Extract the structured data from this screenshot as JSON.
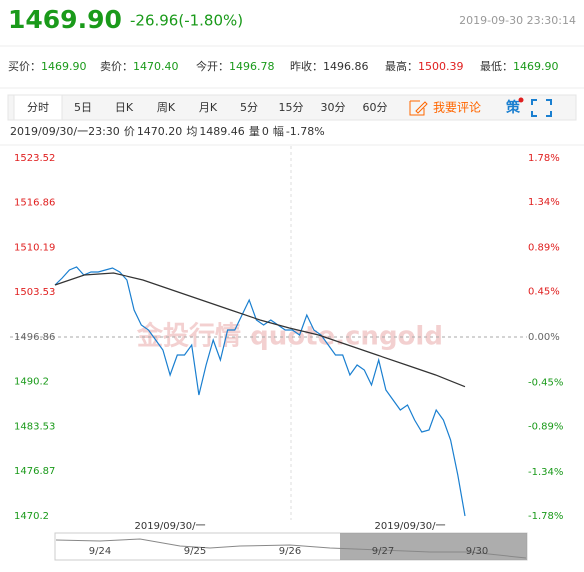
{
  "header": {
    "price": "1469.90",
    "change": "-26.96(-1.80%)",
    "time": "2019-09-30 23:30:14"
  },
  "quotes": [
    {
      "label": "买价：",
      "value": "1469.90",
      "color": "#1a9a1a"
    },
    {
      "label": "卖价：",
      "value": "1470.40",
      "color": "#1a9a1a"
    },
    {
      "label": "今开：",
      "value": "1496.78",
      "color": "#1a9a1a"
    },
    {
      "label": "昨收：",
      "value": "1496.86",
      "color": "#333333"
    },
    {
      "label": "最高：",
      "value": "1500.39",
      "color": "#e02020"
    },
    {
      "label": "最低：",
      "value": "1469.90",
      "color": "#1a9a1a"
    }
  ],
  "tabs": [
    "分时",
    "5日",
    "日K",
    "周K",
    "月K",
    "5分",
    "15分",
    "30分",
    "60分"
  ],
  "comment": "我要评论",
  "strategy": "策",
  "info": [
    "2019/09/30/一23:30",
    "价",
    "1470.20",
    "均",
    "1489.46",
    "量",
    "0",
    "幅",
    "-1.78%"
  ],
  "chart_data": {
    "type": "line",
    "watermark": "金投行情 quote.cngold",
    "ylim": [
      1470.2,
      1523.52
    ],
    "yticks": [
      1523.52,
      1516.86,
      1510.19,
      1503.53,
      1496.86,
      1490.2,
      1483.53,
      1476.87,
      1470.2
    ],
    "y2lim": [
      -1.78,
      1.78
    ],
    "y2ticks": [
      {
        "value": 1.78,
        "label": "1.78%"
      },
      {
        "value": 1.34,
        "label": "1.34%"
      },
      {
        "value": 0.89,
        "label": "0.89%"
      },
      {
        "value": 0.45,
        "label": "0.45%"
      },
      {
        "value": 0,
        "label": "0.00%"
      },
      {
        "value": -0.45,
        "label": "-0.45%"
      },
      {
        "value": -0.89,
        "label": "-0.89%"
      },
      {
        "value": -1.34,
        "label": "-1.34%"
      },
      {
        "value": -1.78,
        "label": "-1.78%"
      }
    ],
    "series": [
      {
        "color": "#1a7fd0",
        "values": [
          1504.6,
          1505.65,
          1506.84,
          1507.29,
          1506.09,
          1506.54,
          1506.54,
          1506.84,
          1507.14,
          1506.54,
          1505.35,
          1500.88,
          1498.65,
          1497.9,
          1496.41,
          1494.92,
          1491.2,
          1494.18,
          1494.18,
          1495.67,
          1488.22,
          1492.69,
          1496.41,
          1493.43,
          1497.9,
          1497.9,
          1500.14,
          1502.37,
          1499.39,
          1498.65,
          1499.39,
          1498.65,
          1497.9,
          1497.9,
          1497.16,
          1500.14,
          1497.9,
          1497.16,
          1495.67,
          1494.18,
          1494.18,
          1491.2,
          1492.69,
          1491.94,
          1489.71,
          1493.43,
          1488.97,
          1487.48,
          1485.99,
          1486.73,
          1484.5,
          1482.71,
          1483.01,
          1485.99,
          1484.5,
          1481.52,
          1476.31,
          1470.2
        ]
      },
      {
        "color": "#333333",
        "values": [
          1504.6,
          1506.09,
          1506.39,
          1505.35,
          1503.86,
          1502.37,
          1500.88,
          1499.39,
          1498.2,
          1497.16,
          1495.67,
          1494.18,
          1492.69,
          1491.2,
          1489.46
        ]
      }
    ]
  },
  "navigator": {
    "day_labels": [
      "2019/09/30/一",
      "2019/09/30/一"
    ],
    "dates": [
      "9/24",
      "9/25",
      "9/26",
      "9/27",
      "9/30"
    ]
  }
}
